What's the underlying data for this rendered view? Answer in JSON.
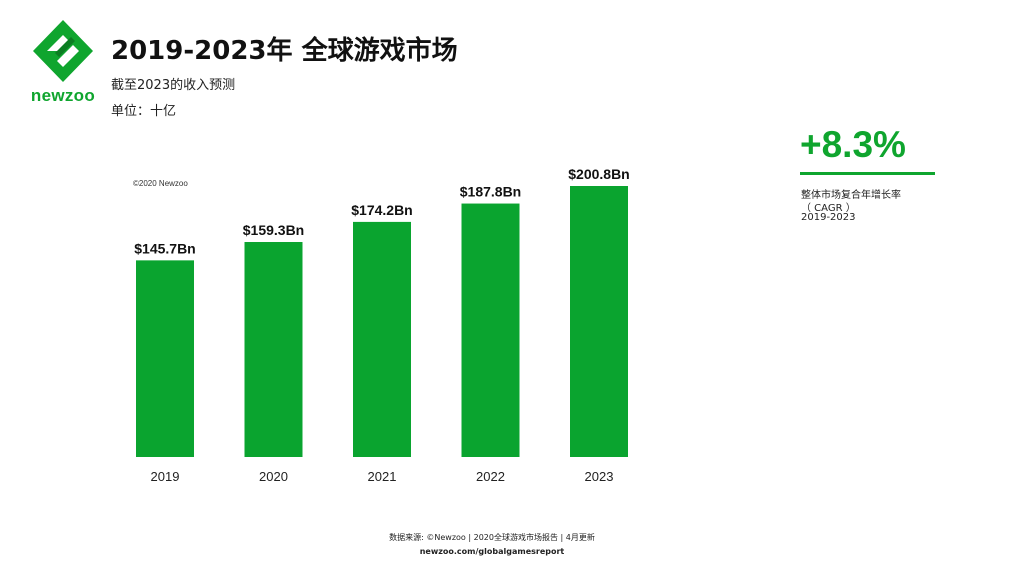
{
  "header": {
    "logo_text": "newzoo",
    "title": "2019-2023年 全球游戏市场",
    "subtitle": "截至2023的收入预测",
    "unit": "单位：十亿"
  },
  "copyright": "©2020 Newzoo",
  "cagr": {
    "value": "+8.3%",
    "label": "整体市场复合年增长率",
    "sub": "（ CAGR ）",
    "period": "2019-2023"
  },
  "footer": {
    "source": "数据来源: ©Newzoo | 2020全球游戏市场报告 | 4月更新",
    "url": "newzoo.com/globalgamesreport"
  },
  "colors": {
    "brand": "#0fa52e",
    "bar": "#0aa42f"
  },
  "chart_data": {
    "type": "bar",
    "categories": [
      "2019",
      "2020",
      "2021",
      "2022",
      "2023"
    ],
    "values": [
      145.7,
      159.3,
      174.2,
      187.8,
      200.8
    ],
    "labels": [
      "$145.7Bn",
      "$159.3Bn",
      "$174.2Bn",
      "$187.8Bn",
      "$200.8Bn"
    ],
    "ylim": [
      0,
      200.8
    ],
    "grid": false,
    "xlabel": "",
    "ylabel": ""
  }
}
